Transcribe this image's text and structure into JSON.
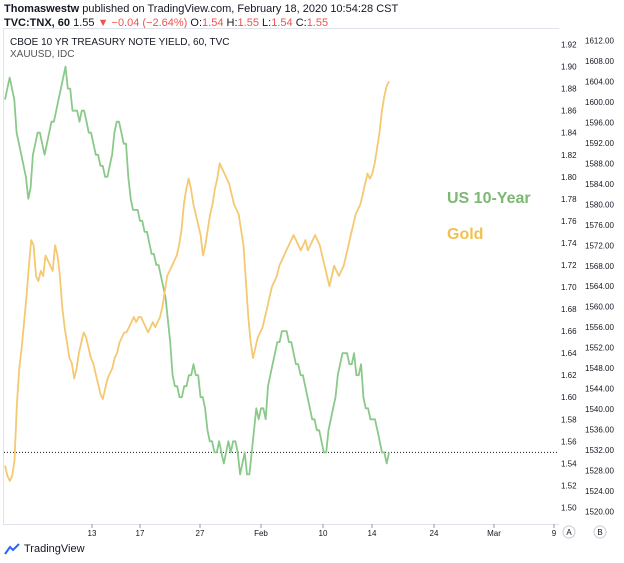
{
  "header": {
    "author": "Thomaswestw",
    "published": "published on TradingView.com, February 18, 2020 10:54:28 CST",
    "symbol": "TVC:TNX, 60",
    "last": "1.55",
    "change": "−0.04 (−2.64%)",
    "o_label": "O:",
    "o_val": "1.54",
    "h_label": "H:",
    "h_val": "1.55",
    "l_label": "L:",
    "l_val": "1.54",
    "c_label": "C:",
    "c_val": "1.55"
  },
  "main_series_title": "CBOE 10 YR TREASURY NOTE YIELD, 60, TVC",
  "secondary_series_title": "XAUUSD, IDC",
  "footer": {
    "brand": "TradingView"
  },
  "colors": {
    "yield_line": "#8bc98a",
    "gold_line": "#f5c872",
    "label_us": "#7cb871",
    "label_gold": "#f2c050"
  },
  "chart_data": {
    "type": "line",
    "annotations": [
      "US 10-Year",
      "Gold"
    ],
    "x_ticks": [
      "13",
      "17",
      "27",
      "Feb",
      "10",
      "14",
      "24",
      "Mar",
      "9"
    ],
    "axis_buttons": [
      "A",
      "B"
    ],
    "y_axis_yield": {
      "ticks": [
        "1.92",
        "1.90",
        "1.88",
        "1.86",
        "1.84",
        "1.82",
        "1.80",
        "1.78",
        "1.76",
        "1.74",
        "1.72",
        "1.70",
        "1.68",
        "1.66",
        "1.64",
        "1.62",
        "1.60",
        "1.58",
        "1.56",
        "1.54",
        "1.52",
        "1.50"
      ],
      "range": [
        1.485,
        1.935
      ]
    },
    "y_axis_gold": {
      "ticks": [
        "1612.00",
        "1608.00",
        "1604.00",
        "1600.00",
        "1596.00",
        "1592.00",
        "1588.00",
        "1584.00",
        "1580.00",
        "1576.00",
        "1572.00",
        "1568.00",
        "1564.00",
        "1560.00",
        "1556.00",
        "1552.00",
        "1548.00",
        "1544.00",
        "1540.00",
        "1536.00",
        "1532.00",
        "1528.00",
        "1524.00",
        "1520.00"
      ],
      "range": [
        1517.6,
        1614.4
      ]
    },
    "reference_line": 1.55,
    "series": [
      {
        "name": "US 10-Year",
        "axis": "yield",
        "values": [
          1.87,
          1.88,
          1.89,
          1.88,
          1.87,
          1.84,
          1.83,
          1.82,
          1.81,
          1.8,
          1.78,
          1.79,
          1.82,
          1.83,
          1.84,
          1.84,
          1.83,
          1.82,
          1.83,
          1.84,
          1.85,
          1.85,
          1.86,
          1.87,
          1.88,
          1.89,
          1.9,
          1.88,
          1.88,
          1.86,
          1.86,
          1.86,
          1.85,
          1.86,
          1.86,
          1.85,
          1.84,
          1.84,
          1.83,
          1.82,
          1.82,
          1.81,
          1.81,
          1.8,
          1.8,
          1.81,
          1.82,
          1.84,
          1.85,
          1.85,
          1.84,
          1.83,
          1.83,
          1.8,
          1.78,
          1.77,
          1.77,
          1.77,
          1.76,
          1.76,
          1.75,
          1.75,
          1.74,
          1.73,
          1.73,
          1.72,
          1.72,
          1.71,
          1.7,
          1.69,
          1.67,
          1.65,
          1.62,
          1.61,
          1.61,
          1.6,
          1.6,
          1.61,
          1.61,
          1.62,
          1.62,
          1.63,
          1.62,
          1.62,
          1.6,
          1.6,
          1.59,
          1.57,
          1.56,
          1.56,
          1.55,
          1.55,
          1.56,
          1.55,
          1.54,
          1.55,
          1.56,
          1.55,
          1.56,
          1.56,
          1.55,
          1.53,
          1.54,
          1.55,
          1.53,
          1.53,
          1.55,
          1.57,
          1.59,
          1.58,
          1.59,
          1.59,
          1.58,
          1.61,
          1.62,
          1.63,
          1.64,
          1.65,
          1.65,
          1.66,
          1.66,
          1.66,
          1.65,
          1.65,
          1.64,
          1.63,
          1.63,
          1.62,
          1.62,
          1.61,
          1.6,
          1.59,
          1.58,
          1.58,
          1.57,
          1.57,
          1.56,
          1.55,
          1.55,
          1.57,
          1.58,
          1.59,
          1.6,
          1.62,
          1.63,
          1.64,
          1.64,
          1.64,
          1.63,
          1.63,
          1.64,
          1.62,
          1.62,
          1.63,
          1.6,
          1.59,
          1.59,
          1.58,
          1.58,
          1.58,
          1.57,
          1.56,
          1.55,
          1.55,
          1.54,
          1.55
        ]
      },
      {
        "name": "Gold",
        "axis": "gold",
        "values": [
          1529,
          1527,
          1526,
          1527,
          1530,
          1541,
          1548,
          1552,
          1557,
          1562,
          1568,
          1573,
          1572,
          1566,
          1565,
          1567,
          1566,
          1570,
          1569,
          1568,
          1567,
          1572,
          1570,
          1566,
          1560,
          1556,
          1553,
          1550,
          1549,
          1546,
          1548,
          1551,
          1553,
          1555,
          1554,
          1552,
          1550,
          1549,
          1547,
          1545,
          1543,
          1542,
          1544,
          1546,
          1547,
          1548,
          1550,
          1551,
          1553,
          1554,
          1555,
          1555,
          1556,
          1557,
          1558,
          1557,
          1558,
          1558,
          1557,
          1556,
          1555,
          1556,
          1557,
          1556,
          1557,
          1558,
          1560,
          1563,
          1566,
          1567,
          1568,
          1569,
          1570,
          1572,
          1575,
          1580,
          1583,
          1585,
          1583,
          1580,
          1578,
          1576,
          1574,
          1570,
          1572,
          1575,
          1578,
          1580,
          1583,
          1585,
          1588,
          1587,
          1586,
          1585,
          1584,
          1582,
          1580,
          1579,
          1578,
          1575,
          1572,
          1565,
          1558,
          1553,
          1550,
          1552,
          1554,
          1555,
          1556,
          1558,
          1560,
          1562,
          1564,
          1565,
          1566,
          1568,
          1569,
          1570,
          1571,
          1572,
          1573,
          1574,
          1573,
          1572,
          1571,
          1572,
          1573,
          1571,
          1572,
          1573,
          1574,
          1573,
          1572,
          1570,
          1568,
          1566,
          1564,
          1566,
          1568,
          1567,
          1566,
          1567,
          1568,
          1570,
          1572,
          1574,
          1576,
          1578,
          1579,
          1580,
          1582,
          1584,
          1586,
          1585,
          1586,
          1588,
          1591,
          1594,
          1598,
          1601,
          1603,
          1604
        ]
      }
    ]
  }
}
